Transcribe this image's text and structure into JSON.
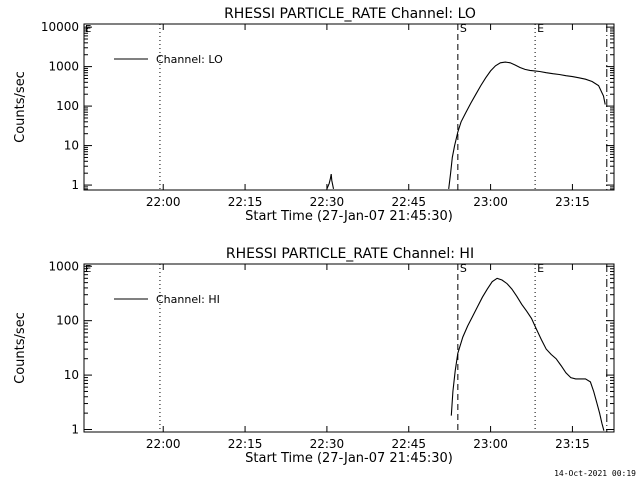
{
  "footer": {
    "timestamp": "14-Oct-2021 00:19"
  },
  "chart_data": [
    {
      "type": "line",
      "title": "RHESSI PARTICLE_RATE Channel: LO",
      "xlabel": "Start Time (27-Jan-07 21:45:30)",
      "ylabel": "Counts/sec",
      "yscale": "log",
      "xlim": [
        21.758,
        23.377
      ],
      "ylim": [
        0.75,
        12000
      ],
      "xticks": [
        {
          "value": 22.0,
          "label": "22:00"
        },
        {
          "value": 22.25,
          "label": "22:15"
        },
        {
          "value": 22.5,
          "label": "22:30"
        },
        {
          "value": 22.75,
          "label": "22:45"
        },
        {
          "value": 23.0,
          "label": "23:00"
        },
        {
          "value": 23.25,
          "label": "23:15"
        }
      ],
      "yticks": [
        {
          "value": 1,
          "label": "1"
        },
        {
          "value": 10,
          "label": "10"
        },
        {
          "value": 100,
          "label": "100"
        },
        {
          "value": 1000,
          "label": "1000"
        },
        {
          "value": 10000,
          "label": "10000"
        }
      ],
      "legend": {
        "position": "top-left",
        "entries": [
          "Channel: LO"
        ]
      },
      "markers": [
        {
          "x": 21.99,
          "style": "dotted",
          "label": ""
        },
        {
          "x": 22.9,
          "style": "dashed",
          "label": "S"
        },
        {
          "x": 23.136,
          "style": "dotted",
          "label": "E"
        },
        {
          "x": 23.355,
          "style": "dashdot",
          "label": ""
        }
      ],
      "edge_label": "E",
      "series": [
        {
          "name": "Channel: LO",
          "segments": [
            {
              "x": [
                22.5,
                22.507,
                22.511,
                22.513,
                22.515,
                22.52
              ],
              "y": [
                0.8,
                1.1,
                1.5,
                1.9,
                1.3,
                0.8
              ]
            },
            {
              "x": [
                22.872,
                22.878,
                22.883,
                22.89,
                22.9,
                22.91,
                22.925,
                22.94,
                22.955,
                22.97,
                22.985,
                23.0,
                23.015,
                23.03,
                23.045,
                23.06,
                23.075,
                23.09,
                23.105,
                23.12,
                23.135,
                23.15,
                23.17,
                23.19,
                23.21,
                23.23,
                23.25,
                23.27,
                23.29,
                23.31,
                23.33,
                23.345,
                23.35
              ],
              "y": [
                0.8,
                2,
                5,
                10,
                22,
                40,
                70,
                120,
                200,
                330,
                520,
                780,
                1050,
                1250,
                1300,
                1250,
                1100,
                950,
                850,
                800,
                780,
                750,
                700,
                660,
                630,
                590,
                560,
                520,
                480,
                420,
                330,
                180,
                110
              ]
            }
          ]
        }
      ]
    },
    {
      "type": "line",
      "title": "RHESSI PARTICLE_RATE Channel: HI",
      "xlabel": "Start Time (27-Jan-07 21:45:30)",
      "ylabel": "Counts/sec",
      "yscale": "log",
      "xlim": [
        21.758,
        23.377
      ],
      "ylim": [
        0.9,
        1100
      ],
      "xticks": [
        {
          "value": 22.0,
          "label": "22:00"
        },
        {
          "value": 22.25,
          "label": "22:15"
        },
        {
          "value": 22.5,
          "label": "22:30"
        },
        {
          "value": 22.75,
          "label": "22:45"
        },
        {
          "value": 23.0,
          "label": "23:00"
        },
        {
          "value": 23.25,
          "label": "23:15"
        }
      ],
      "yticks": [
        {
          "value": 1,
          "label": "1"
        },
        {
          "value": 10,
          "label": "10"
        },
        {
          "value": 100,
          "label": "100"
        },
        {
          "value": 1000,
          "label": "1000"
        }
      ],
      "legend": {
        "position": "top-left",
        "entries": [
          "Channel: HI"
        ]
      },
      "markers": [
        {
          "x": 21.99,
          "style": "dotted",
          "label": ""
        },
        {
          "x": 22.9,
          "style": "dashed",
          "label": "S"
        },
        {
          "x": 23.136,
          "style": "dotted",
          "label": "E"
        },
        {
          "x": 23.355,
          "style": "dashdot",
          "label": ""
        }
      ],
      "edge_label": "E",
      "series": [
        {
          "name": "Channel: HI",
          "segments": [
            {
              "x": [
                22.88,
                22.885,
                22.892,
                22.9,
                22.915,
                22.93,
                22.945,
                22.96,
                22.975,
                22.99,
                23.005,
                23.02,
                23.035,
                23.05,
                23.065,
                23.08,
                23.095,
                23.11,
                23.125,
                23.14,
                23.155,
                23.17,
                23.185,
                23.2,
                23.215,
                23.23,
                23.245,
                23.26,
                23.275,
                23.29,
                23.305,
                23.315,
                23.325,
                23.333,
                23.34,
                23.346
              ],
              "y": [
                1.8,
                5,
                12,
                25,
                50,
                80,
                120,
                180,
                270,
                380,
                520,
                600,
                560,
                480,
                380,
                280,
                200,
                150,
                110,
                70,
                45,
                30,
                24,
                20,
                15,
                11,
                9,
                8.5,
                8.5,
                8.5,
                7.5,
                5,
                3,
                2,
                1.3,
                0.95
              ]
            }
          ]
        }
      ]
    }
  ]
}
